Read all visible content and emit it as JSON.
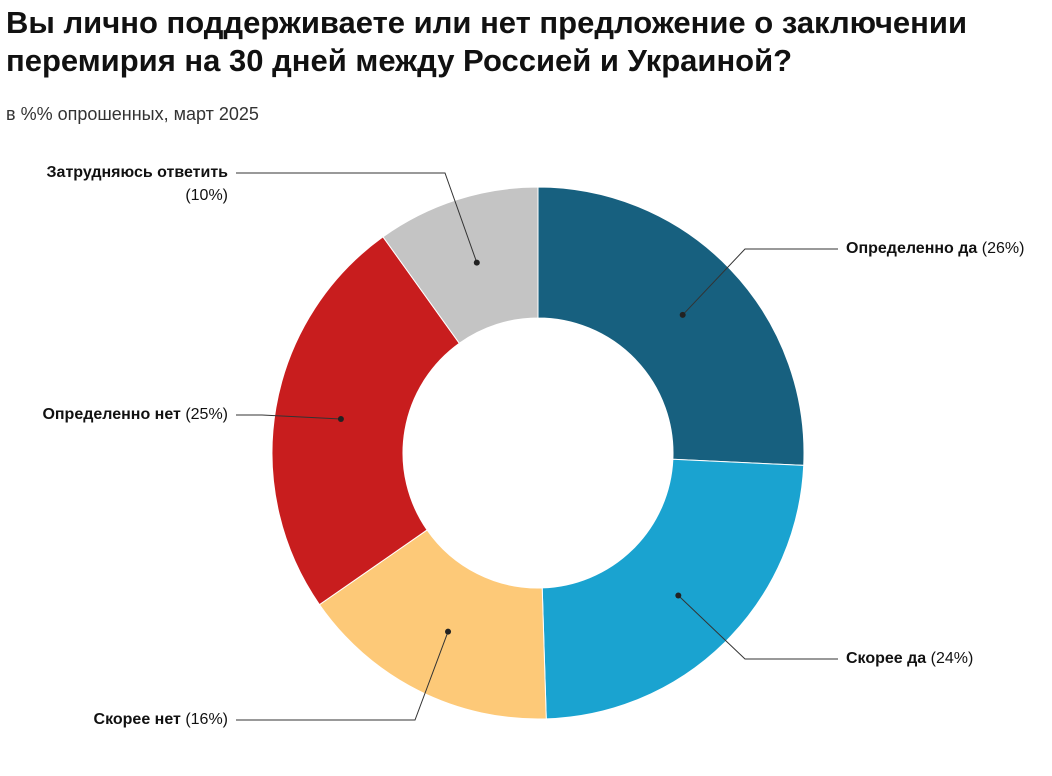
{
  "chart_data": {
    "type": "donut",
    "title": "Вы лично поддерживаете или нет предложение о заключении перемирия на 30 дней между Россией и Украиной?",
    "subtitle": "в %% опрошенных, март 2025",
    "categories": [
      "Определенно да",
      "Скорее да",
      "Скорее нет",
      "Определенно нет",
      "Затрудняюсь ответить"
    ],
    "values": [
      26,
      24,
      16,
      25,
      10
    ],
    "value_labels": [
      "(26%)",
      "(24%)",
      "(16%)",
      "(25%)",
      "(10%)"
    ],
    "colors": [
      "#17607f",
      "#1aa3d0",
      "#fdc978",
      "#c81d1e",
      "#c4c4c4"
    ]
  }
}
